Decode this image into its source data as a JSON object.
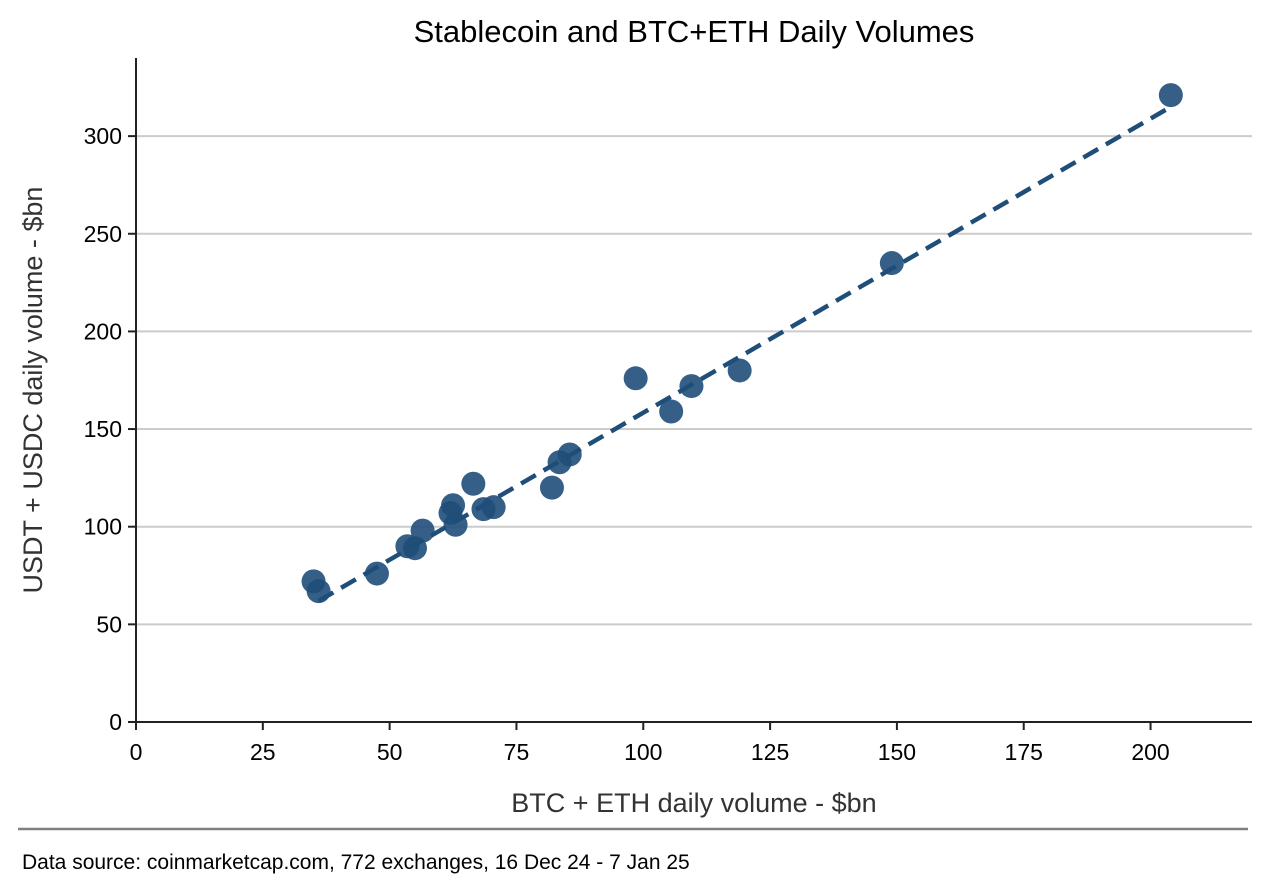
{
  "chart_data": {
    "type": "scatter",
    "title": "Stablecoin and BTC+ETH Daily Volumes",
    "xlabel": "BTC + ETH daily volume - $bn",
    "ylabel": "USDT + USDC daily volume - $bn",
    "xlim": [
      0,
      220
    ],
    "ylim": [
      0,
      340
    ],
    "x_ticks": [
      0,
      25,
      50,
      75,
      100,
      125,
      150,
      175,
      200
    ],
    "y_ticks": [
      0,
      50,
      100,
      150,
      200,
      250,
      300
    ],
    "grid": "horizontal",
    "marker_color": "#1f4e79",
    "points": [
      {
        "x": 35,
        "y": 72
      },
      {
        "x": 36,
        "y": 67
      },
      {
        "x": 47.5,
        "y": 76
      },
      {
        "x": 53.5,
        "y": 90
      },
      {
        "x": 55,
        "y": 89
      },
      {
        "x": 56.5,
        "y": 98
      },
      {
        "x": 62,
        "y": 107
      },
      {
        "x": 62.5,
        "y": 111
      },
      {
        "x": 63,
        "y": 101
      },
      {
        "x": 66.5,
        "y": 122
      },
      {
        "x": 68.5,
        "y": 109
      },
      {
        "x": 70.5,
        "y": 110
      },
      {
        "x": 82,
        "y": 120
      },
      {
        "x": 83.5,
        "y": 133
      },
      {
        "x": 85.5,
        "y": 137
      },
      {
        "x": 98.5,
        "y": 176
      },
      {
        "x": 105.5,
        "y": 159
      },
      {
        "x": 109.5,
        "y": 172
      },
      {
        "x": 119,
        "y": 180
      },
      {
        "x": 149,
        "y": 235
      },
      {
        "x": 204,
        "y": 321
      }
    ],
    "trendline": {
      "style": "dashed",
      "color": "#1f4e79",
      "x": [
        36,
        204
      ],
      "y": [
        62,
        315
      ]
    }
  },
  "source": "Data source: coinmarketcap.com, 772 exchanges, 16 Dec 24 - 7 Jan 25"
}
